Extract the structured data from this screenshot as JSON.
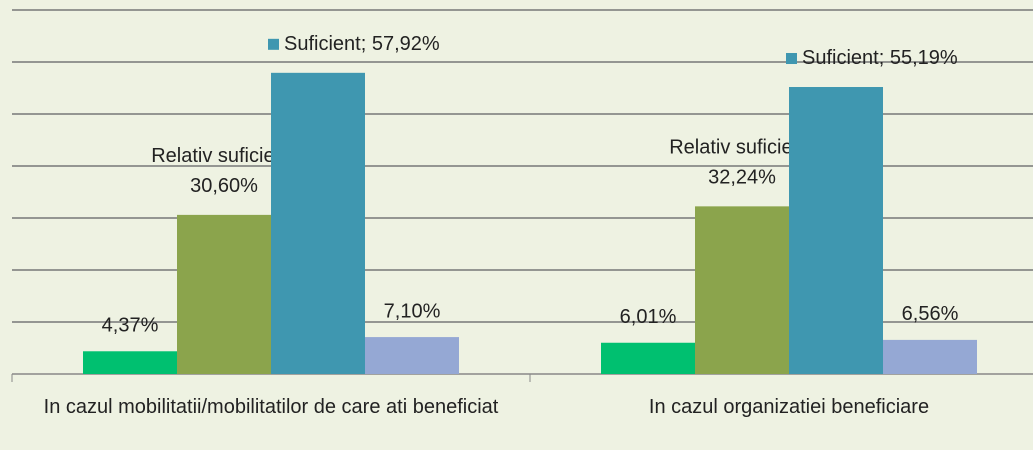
{
  "chart_data": {
    "type": "bar",
    "categories": [
      "In cazul mobilitatii/mobilitatilor de care ati beneficiat",
      "In cazul organizatiei beneficiare"
    ],
    "series": [
      {
        "color": "#00c070",
        "values": [
          4.37,
          6.01
        ],
        "value_labels": [
          "4,37%",
          "6,01%"
        ]
      },
      {
        "name": "Relativ suficient",
        "color": "#8ba44c",
        "values": [
          30.6,
          32.24
        ],
        "value_labels": [
          "30,60%",
          "32,24%"
        ]
      },
      {
        "name": "Suficient",
        "color": "#3f97b0",
        "values": [
          57.92,
          55.19
        ],
        "value_labels": [
          "57,92%",
          "55,19%"
        ]
      },
      {
        "color": "#95a8d4",
        "values": [
          7.1,
          6.56
        ],
        "value_labels": [
          "7,10%",
          "6,56%"
        ]
      }
    ],
    "ylim": [
      0,
      70
    ],
    "yticks": [
      0,
      10,
      20,
      30,
      40,
      50,
      60,
      70
    ],
    "grid": true
  }
}
